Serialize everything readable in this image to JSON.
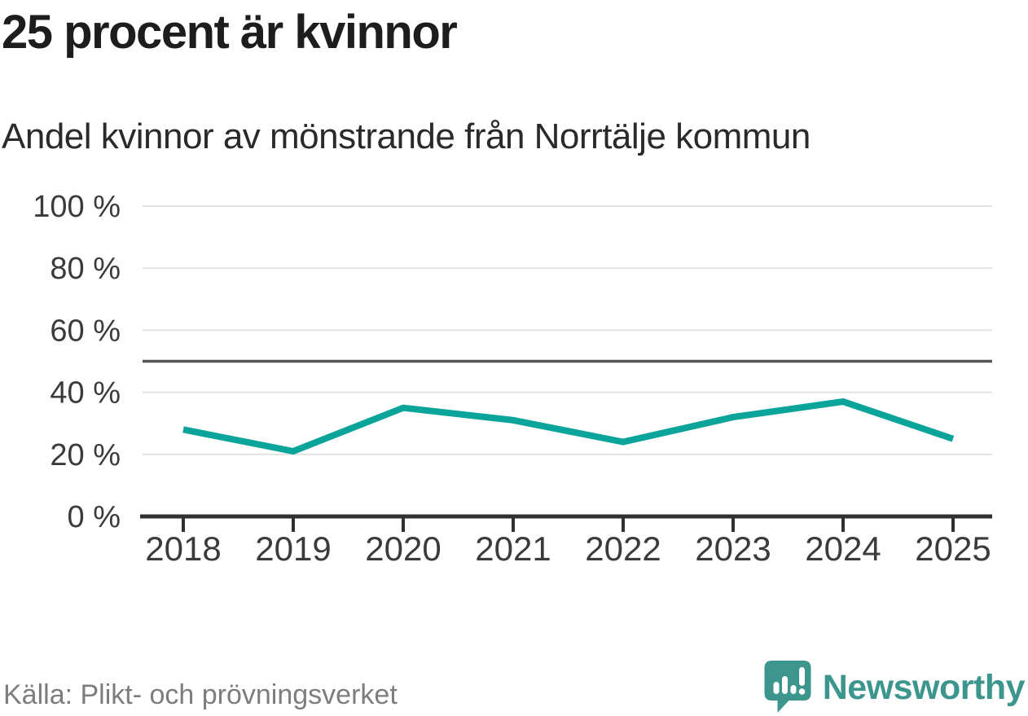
{
  "chart_data": {
    "type": "line",
    "title": "25 procent är kvinnor",
    "subtitle": "Andel kvinnor av mönstrande från Norrtälje kommun",
    "categories": [
      "2018",
      "2019",
      "2020",
      "2021",
      "2022",
      "2023",
      "2024",
      "2025"
    ],
    "series": [
      {
        "name": "Andel kvinnor av mönstrande",
        "values": [
          28,
          21,
          35,
          31,
          24,
          32,
          37,
          25
        ]
      }
    ],
    "unit": "%",
    "ylim": [
      0,
      100
    ],
    "yticks": [
      0,
      20,
      40,
      60,
      80,
      100
    ],
    "ytick_suffix": " %",
    "xlabel": "",
    "ylabel": "",
    "grid": true,
    "legend_position": "none",
    "reference_line": {
      "value": 50
    },
    "colors": {
      "line": "#0ba49a",
      "grid": "#e2e2e2",
      "reference": "#575757",
      "axis": "#303030",
      "tick_text": "#3b3b3b"
    }
  },
  "footer": {
    "source": "Källa: Plikt- och prövningsverket",
    "brand": {
      "name": "Newsworthy",
      "color": "#3d968e"
    }
  }
}
